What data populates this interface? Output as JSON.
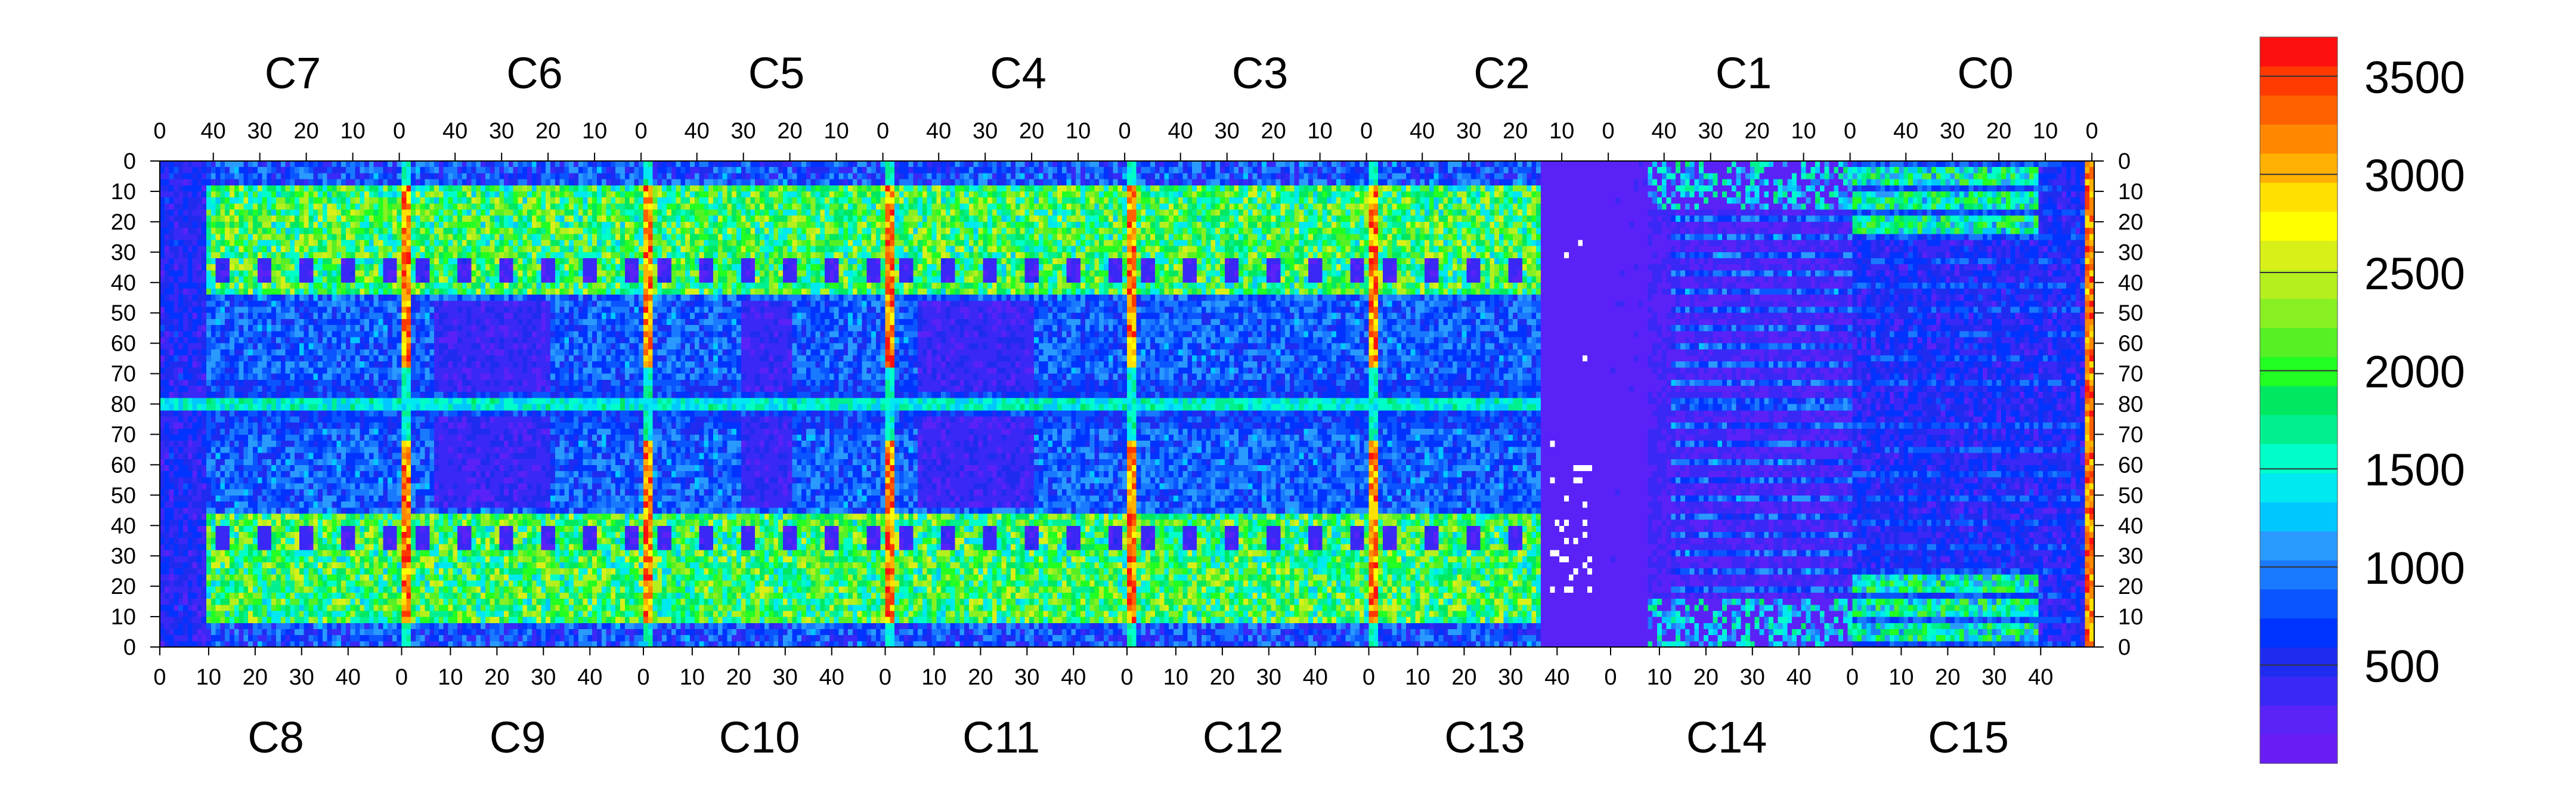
{
  "chart_data": {
    "type": "heatmap",
    "title": "",
    "xlabel": "",
    "ylabel": "",
    "grid": false,
    "legend": "colorbar-right",
    "top_chip_labels": [
      "C7",
      "C6",
      "C5",
      "C4",
      "C3",
      "C2",
      "C1",
      "C0"
    ],
    "bottom_chip_labels": [
      "C8",
      "C9",
      "C10",
      "C11",
      "C12",
      "C13",
      "C14",
      "C15"
    ],
    "chip_columns": 52,
    "top_tick_labels": [
      "40",
      "30",
      "20",
      "10",
      "0"
    ],
    "bottom_tick_labels": [
      "0",
      "10",
      "20",
      "30",
      "40"
    ],
    "y_tick_labels": [
      "0",
      "10",
      "20",
      "30",
      "40",
      "50",
      "60",
      "70",
      "80",
      "70",
      "60",
      "50",
      "40",
      "30",
      "20",
      "10",
      "0"
    ],
    "colorbar": {
      "range": [
        0,
        3700
      ],
      "tick_values": [
        500,
        1000,
        1500,
        2000,
        2500,
        3000,
        3500
      ],
      "tick_labels": [
        "500",
        "1000",
        "1500",
        "2000",
        "2500",
        "3000",
        "3500"
      ],
      "colors": [
        "#6a1cf5",
        "#5a22f7",
        "#3a28f6",
        "#1f2cf0",
        "#0033ff",
        "#0a55ff",
        "#1a7aff",
        "#2a9aff",
        "#00c8ff",
        "#00e8f0",
        "#00ffc8",
        "#00f090",
        "#00e860",
        "#22ff22",
        "#55f025",
        "#88f022",
        "#b4f01e",
        "#d9f018",
        "#ffff00",
        "#ffe000",
        "#ffb000",
        "#ff8800",
        "#ff6000",
        "#ff3a00",
        "#ff1010"
      ]
    },
    "summary": {
      "dead_region_chip": "C13",
      "hot_columns_at_chip_boundaries": true,
      "typical_occupancy_range": [
        300,
        2500
      ],
      "max_value": 3600
    }
  }
}
